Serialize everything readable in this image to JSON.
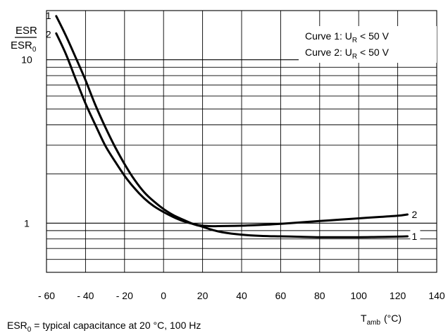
{
  "chart_data": {
    "type": "line",
    "yscale": "log",
    "xlim": [
      -60,
      140
    ],
    "ylim": [
      0.5,
      20
    ],
    "x_ticks": [
      -60,
      -40,
      -20,
      0,
      20,
      40,
      60,
      80,
      100,
      120,
      140
    ],
    "x_tick_labels": [
      "- 60",
      "- 40",
      "- 20",
      "0",
      "20",
      "40",
      "60",
      "80",
      "100",
      "120",
      "140"
    ],
    "y_tick_labels": [
      {
        "value": 10,
        "label": "10"
      },
      {
        "value": 1,
        "label": "1"
      }
    ],
    "ylabel": {
      "numerator": "ESR",
      "denominator_main": "ESR",
      "denominator_sub": "0"
    },
    "xlabel": {
      "main": "T",
      "sub": "amb",
      "unit": "(°C)"
    },
    "legend": [
      {
        "prefix": "Curve 1: U",
        "sub": "R",
        "suffix": " < 50 V"
      },
      {
        "prefix": "Curve 2: U",
        "sub": "R",
        "suffix": " < 50 V"
      }
    ],
    "legend_position": "top-right",
    "footnote": {
      "main": "ESR",
      "sub": "0",
      "rest": " = typical capacitance at 20 °C, 100 Hz"
    },
    "series": [
      {
        "label": "1",
        "x": [
          -55,
          -50,
          -45,
          -40,
          -35,
          -30,
          -25,
          -20,
          -15,
          -10,
          -5,
          0,
          5,
          10,
          15,
          20,
          25,
          30,
          40,
          50,
          60,
          70,
          80,
          90,
          100,
          110,
          120,
          125
        ],
        "y": [
          18.5,
          14,
          10.3,
          7.5,
          5.3,
          3.9,
          2.95,
          2.3,
          1.85,
          1.55,
          1.36,
          1.22,
          1.12,
          1.05,
          0.99,
          0.95,
          0.91,
          0.88,
          0.85,
          0.835,
          0.83,
          0.825,
          0.82,
          0.82,
          0.82,
          0.823,
          0.827,
          0.83
        ]
      },
      {
        "label": "2",
        "x": [
          -55,
          -50,
          -45,
          -40,
          -35,
          -30,
          -25,
          -20,
          -15,
          -10,
          -5,
          0,
          5,
          10,
          15,
          20,
          25,
          30,
          40,
          50,
          60,
          70,
          80,
          90,
          100,
          110,
          120,
          125
        ],
        "y": [
          14.5,
          10.8,
          7.6,
          5.4,
          4.0,
          3.0,
          2.4,
          1.95,
          1.64,
          1.42,
          1.27,
          1.17,
          1.09,
          1.03,
          0.99,
          0.965,
          0.958,
          0.96,
          0.965,
          0.975,
          0.99,
          1.01,
          1.03,
          1.05,
          1.07,
          1.09,
          1.11,
          1.13
        ]
      }
    ],
    "colors": {
      "line": "#000000",
      "grid": "#000000",
      "background": "#ffffff"
    }
  }
}
